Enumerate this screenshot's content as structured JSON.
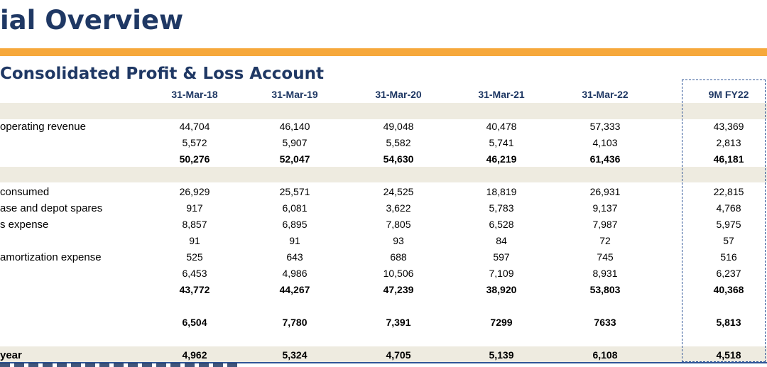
{
  "page": {
    "title": "ial Overview",
    "subtitle": "Consolidated Profit & Loss Account"
  },
  "columns": [
    "31-Mar-18",
    "31-Mar-19",
    "31-Mar-20",
    "31-Mar-21",
    "31-Mar-22",
    "9M FY22"
  ],
  "rows": [
    {
      "label": "operating revenue",
      "values": [
        "44,704",
        "46,140",
        "49,048",
        "40,478",
        "57,333",
        "43,369"
      ],
      "bold": false
    },
    {
      "label": "",
      "values": [
        "5,572",
        "5,907",
        "5,582",
        "5,741",
        "4,103",
        "2,813"
      ],
      "bold": false
    },
    {
      "label": "",
      "values": [
        "50,276",
        "52,047",
        "54,630",
        "46,219",
        "61,436",
        "46,181"
      ],
      "bold": true
    },
    {
      "label": "consumed",
      "values": [
        "26,929",
        "25,571",
        "24,525",
        "18,819",
        "26,931",
        "22,815"
      ],
      "bold": false
    },
    {
      "label": "ase and depot spares",
      "values": [
        "917",
        "6,081",
        "3,622",
        "5,783",
        "9,137",
        "4,768"
      ],
      "bold": false
    },
    {
      "label": "s expense",
      "values": [
        "8,857",
        "6,895",
        "7,805",
        "6,528",
        "7,987",
        "5,975"
      ],
      "bold": false
    },
    {
      "label": "",
      "values": [
        "91",
        "91",
        "93",
        "84",
        "72",
        "57"
      ],
      "bold": false
    },
    {
      "label": "amortization expense",
      "values": [
        "525",
        "643",
        "688",
        "597",
        "745",
        "516"
      ],
      "bold": false
    },
    {
      "label": "",
      "values": [
        "6,453",
        "4,986",
        "10,506",
        "7,109",
        "8,931",
        "6,237"
      ],
      "bold": false
    },
    {
      "label": "",
      "values": [
        "43,772",
        "44,267",
        "47,239",
        "38,920",
        "53,803",
        "40,368"
      ],
      "bold": true
    },
    {
      "label": "",
      "values": [
        "6,504",
        "7,780",
        "7,391",
        "7299",
        "7633",
        "5,813"
      ],
      "bold": true
    },
    {
      "label": "year",
      "values": [
        "4,962",
        "5,324",
        "4,705",
        "5,139",
        "6,108",
        "4,518"
      ],
      "bold": true
    }
  ],
  "colors": {
    "title": "#1f3864",
    "accent_bar": "#f6a83b",
    "band": "#eeebe0",
    "dashed_border": "#2f5597"
  }
}
